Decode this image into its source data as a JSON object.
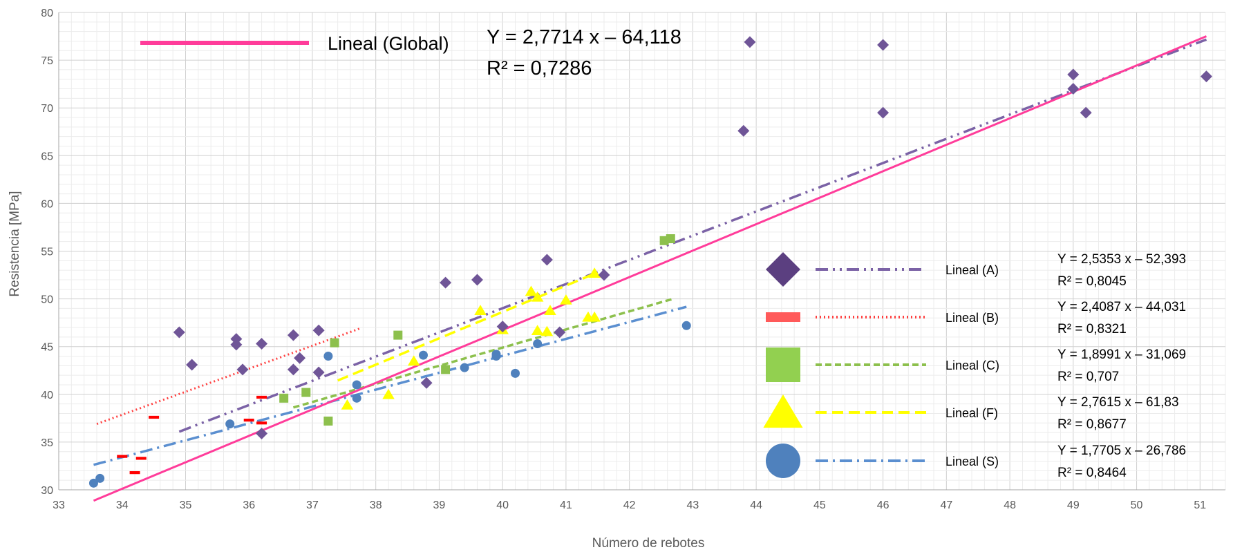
{
  "chart_data": {
    "type": "scatter",
    "title": "",
    "xlabel": "Número de rebotes",
    "ylabel": "Resistencia [MPa]",
    "xlim": [
      33,
      51.4
    ],
    "ylim": [
      30,
      80
    ],
    "x_ticks": [
      "33",
      "34",
      "35",
      "36",
      "37",
      "38",
      "39",
      "40",
      "41",
      "42",
      "43",
      "44",
      "45",
      "46",
      "47",
      "48",
      "49",
      "50",
      "51"
    ],
    "y_ticks": [
      "30",
      "35",
      "40",
      "45",
      "50",
      "55",
      "60",
      "65",
      "70",
      "75",
      "80"
    ],
    "grid": true,
    "legend_position": "right",
    "global_trend": {
      "label": "Lineal (Global)",
      "equation": "Y = 2,7714 x – 64,118",
      "r2": "R² = 0,7286",
      "slope": 2.7714,
      "intercept": -64.118,
      "x_range": [
        33.55,
        51.1
      ],
      "color": "#FF3C9A"
    },
    "series": [
      {
        "name": "A",
        "trend_label": "Lineal (A)",
        "equation": "Y = 2,5353 x – 52,393",
        "r2": "R² = 0,8045",
        "slope": 2.5353,
        "intercept": -52.393,
        "trend_x_range": [
          34.9,
          51.1
        ],
        "marker": "diamond",
        "color": "#6F5597",
        "legend_color": "#5B3F80",
        "trend_color": "#7B62A6",
        "dash": "18,7,3,7,3,7",
        "x": [
          34.9,
          35.1,
          35.8,
          35.8,
          35.9,
          36.2,
          36.2,
          36.7,
          36.7,
          36.8,
          37.1,
          37.1,
          38.8,
          39.1,
          39.6,
          40.0,
          40.7,
          40.9,
          41.6,
          43.8,
          43.9,
          46.0,
          46.0,
          49.0,
          49.0,
          49.2,
          51.1
        ],
        "y": [
          46.5,
          43.1,
          45.8,
          45.2,
          42.6,
          45.3,
          35.9,
          46.2,
          42.6,
          43.8,
          46.7,
          42.3,
          41.2,
          51.7,
          52.0,
          47.1,
          54.1,
          46.5,
          52.5,
          67.6,
          76.9,
          76.6,
          69.5,
          73.5,
          72.0,
          69.5,
          73.3
        ]
      },
      {
        "name": "B",
        "trend_label": "Lineal (B)",
        "equation": "Y = 2,4087 x – 44,031",
        "r2": "R² = 0,8321",
        "slope": 2.4087,
        "intercept": -44.031,
        "trend_x_range": [
          33.6,
          37.75
        ],
        "marker": "dash",
        "color": "#FF0000",
        "legend_color": "#FF5A5A",
        "trend_color": "#FF4040",
        "dash": "2,4",
        "x": [
          34.0,
          34.2,
          34.3,
          34.5,
          36.0,
          36.2,
          36.2
        ],
        "y": [
          33.5,
          31.8,
          33.3,
          37.6,
          37.3,
          39.7,
          37.0
        ]
      },
      {
        "name": "C",
        "trend_label": "Lineal (C)",
        "equation": "Y = 1,8991 x – 31,069",
        "r2": "R² = 0,707",
        "slope": 1.8991,
        "intercept": -31.069,
        "trend_x_range": [
          36.7,
          42.7
        ],
        "marker": "square",
        "color": "#8DC04D",
        "legend_color": "#92D050",
        "trend_color": "#8DC04D",
        "dash": "9,5",
        "x": [
          36.55,
          36.9,
          37.25,
          37.35,
          38.35,
          39.1,
          42.55,
          42.65
        ],
        "y": [
          39.6,
          40.2,
          37.2,
          45.4,
          46.2,
          42.6,
          56.1,
          56.3
        ]
      },
      {
        "name": "F",
        "trend_label": "Lineal (F)",
        "equation": "Y = 2,7615 x – 61,83",
        "r2": "R² = 0,8677",
        "slope": 2.7615,
        "intercept": -61.83,
        "trend_x_range": [
          37.4,
          41.5
        ],
        "marker": "triangle",
        "color": "#FFFF00",
        "legend_color": "#FFFF00",
        "trend_color": "#FFFF00",
        "dash": "16,8",
        "x": [
          37.55,
          38.2,
          38.6,
          39.65,
          40.0,
          40.45,
          40.55,
          40.55,
          40.7,
          40.75,
          41.0,
          41.35,
          41.45,
          41.45
        ],
        "y": [
          38.9,
          40.0,
          43.5,
          48.8,
          46.8,
          50.8,
          50.2,
          46.7,
          46.6,
          48.8,
          49.9,
          48.1,
          48.1,
          52.7
        ]
      },
      {
        "name": "S",
        "trend_label": "Lineal (S)",
        "equation": "Y = 1,7705 x – 26,786",
        "r2": "R² = 0,8464",
        "slope": 1.7705,
        "intercept": -26.786,
        "trend_x_range": [
          33.55,
          42.9
        ],
        "marker": "circle",
        "color": "#4F81BD",
        "legend_color": "#4F81BD",
        "trend_color": "#5B8FD0",
        "dash": "18,7,3,7",
        "x": [
          33.55,
          33.65,
          35.7,
          37.25,
          37.7,
          37.7,
          38.75,
          39.4,
          39.9,
          39.9,
          40.2,
          40.55,
          42.9
        ],
        "y": [
          30.7,
          31.2,
          36.9,
          44.0,
          41.0,
          39.6,
          44.1,
          42.8,
          44.2,
          44.0,
          42.2,
          45.3,
          47.2
        ]
      }
    ]
  }
}
